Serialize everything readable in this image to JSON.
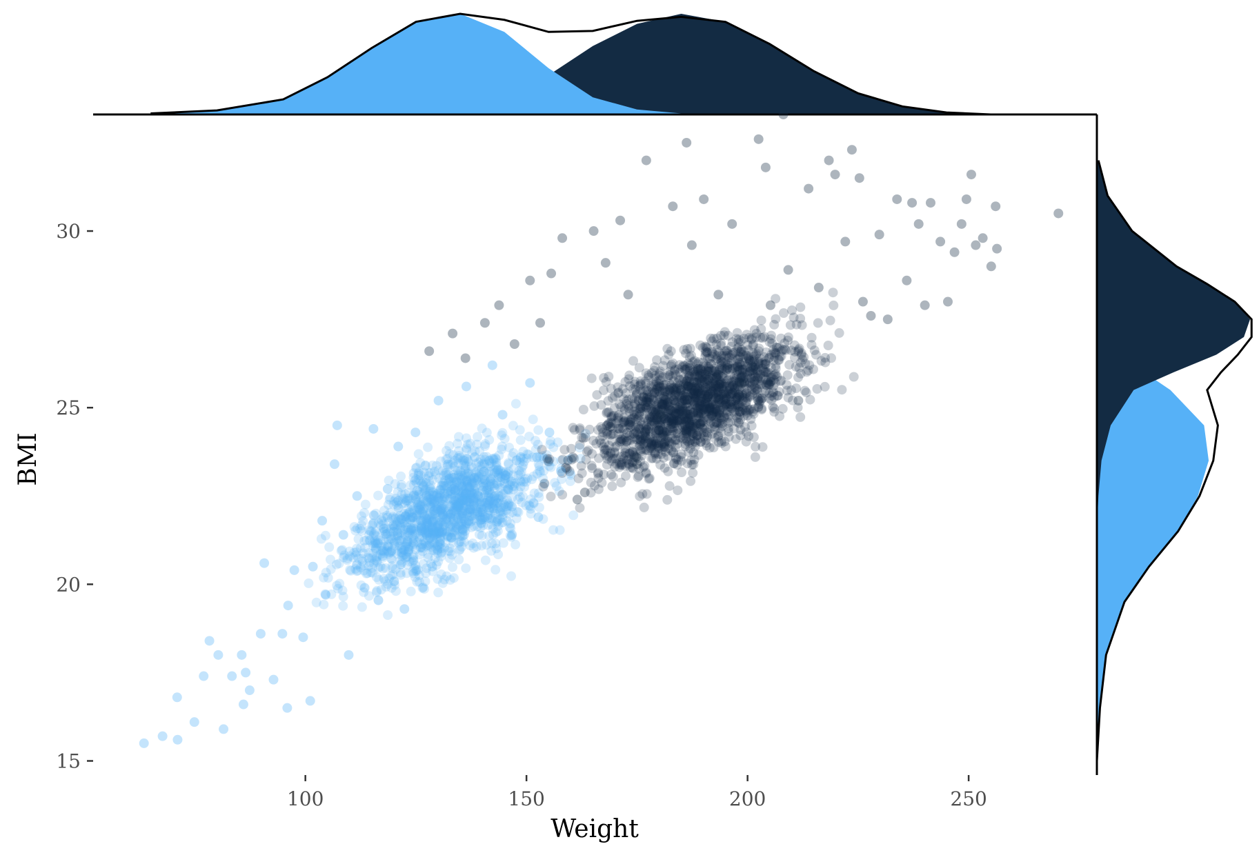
{
  "chart_data": {
    "type": "scatter",
    "xlabel": "Weight",
    "ylabel": "BMI",
    "xlim": [
      52,
      279
    ],
    "ylim": [
      14.6,
      33.3
    ],
    "x_ticks": [
      100,
      150,
      200,
      250
    ],
    "y_ticks": [
      15,
      20,
      25,
      30
    ],
    "grid": false,
    "legend": "none",
    "colors": {
      "light_group": "#56b1f7",
      "dark_group": "#132b43",
      "overall_density": "#000000"
    },
    "series": [
      {
        "color": "#56b1f7",
        "points": [
          [
            63.5,
            15.5
          ],
          [
            67.7,
            15.7
          ],
          [
            71.1,
            15.6
          ],
          [
            71.0,
            16.8
          ],
          [
            74.9,
            16.1
          ],
          [
            77.0,
            17.4
          ],
          [
            78.3,
            18.4
          ],
          [
            80.3,
            18.0
          ],
          [
            81.5,
            15.9
          ],
          [
            83.4,
            17.4
          ],
          [
            85.6,
            18.0
          ],
          [
            86.0,
            16.6
          ],
          [
            86.5,
            17.5
          ],
          [
            87.4,
            17.0
          ],
          [
            89.9,
            18.6
          ],
          [
            90.7,
            20.6
          ],
          [
            92.8,
            17.3
          ],
          [
            94.8,
            18.6
          ],
          [
            95.9,
            16.5
          ],
          [
            96.1,
            19.4
          ],
          [
            97.5,
            20.4
          ],
          [
            99.5,
            18.5
          ],
          [
            101.1,
            16.7
          ],
          [
            101.7,
            20.5
          ],
          [
            103.8,
            21.8
          ],
          [
            104.6,
            19.7
          ],
          [
            106.6,
            23.4
          ],
          [
            107.2,
            24.5
          ],
          [
            108.6,
            21.4
          ],
          [
            109.8,
            18.0
          ],
          [
            111.7,
            22.5
          ],
          [
            113.4,
            19.9
          ],
          [
            115.4,
            24.4
          ],
          [
            117.5,
            20.8
          ],
          [
            118.6,
            22.7
          ],
          [
            121.0,
            23.9
          ],
          [
            122.4,
            19.3
          ],
          [
            124.9,
            24.3
          ],
          [
            126.1,
            21.8
          ],
          [
            128.7,
            20.5
          ],
          [
            130.1,
            25.2
          ],
          [
            132.6,
            23.0
          ],
          [
            134.2,
            21.6
          ],
          [
            136.4,
            25.6
          ],
          [
            138.3,
            23.6
          ],
          [
            140.6,
            21.9
          ],
          [
            142.3,
            26.2
          ],
          [
            144.6,
            24.8
          ],
          [
            146.7,
            22.2
          ],
          [
            148.7,
            23.6
          ],
          [
            150.8,
            25.7
          ],
          [
            152.7,
            21.9
          ],
          [
            155.2,
            24.3
          ],
          [
            157.8,
            23.2
          ]
        ]
      },
      {
        "color": "#132b43",
        "points": [
          [
            128.0,
            26.6
          ],
          [
            133.3,
            27.1
          ],
          [
            136.2,
            26.4
          ],
          [
            140.6,
            27.4
          ],
          [
            143.8,
            27.9
          ],
          [
            147.3,
            26.8
          ],
          [
            150.8,
            28.6
          ],
          [
            153.1,
            27.4
          ],
          [
            155.6,
            28.8
          ],
          [
            158.1,
            29.8
          ],
          [
            161.5,
            22.4
          ],
          [
            163.2,
            22.6
          ],
          [
            165.2,
            30.0
          ],
          [
            167.9,
            29.1
          ],
          [
            171.2,
            30.3
          ],
          [
            173.0,
            28.2
          ],
          [
            174.8,
            23.6
          ],
          [
            175.0,
            23.4
          ],
          [
            177.1,
            32.0
          ],
          [
            180.3,
            24.8
          ],
          [
            183.1,
            30.7
          ],
          [
            186.2,
            32.5
          ],
          [
            187.4,
            29.6
          ],
          [
            190.1,
            30.9
          ],
          [
            193.4,
            28.2
          ],
          [
            196.5,
            30.2
          ],
          [
            198.7,
            25.7
          ],
          [
            202.5,
            32.6
          ],
          [
            204.1,
            31.8
          ],
          [
            205.2,
            27.9
          ],
          [
            208.1,
            33.3
          ],
          [
            209.2,
            28.9
          ],
          [
            211.5,
            25.2
          ],
          [
            213.8,
            31.2
          ],
          [
            216.1,
            28.4
          ],
          [
            218.4,
            32.0
          ],
          [
            219.8,
            31.6
          ],
          [
            222.1,
            29.7
          ],
          [
            223.6,
            32.3
          ],
          [
            225.3,
            31.5
          ],
          [
            226.1,
            28.0
          ],
          [
            227.9,
            27.6
          ],
          [
            229.8,
            29.9
          ],
          [
            231.7,
            27.5
          ],
          [
            233.8,
            30.9
          ],
          [
            236.0,
            28.6
          ],
          [
            237.2,
            30.8
          ],
          [
            238.7,
            30.2
          ],
          [
            240.1,
            27.9
          ],
          [
            241.4,
            30.8
          ],
          [
            243.6,
            29.7
          ],
          [
            245.3,
            28.0
          ],
          [
            246.8,
            29.4
          ],
          [
            248.4,
            30.2
          ],
          [
            249.5,
            30.9
          ],
          [
            250.6,
            31.6
          ],
          [
            251.6,
            29.6
          ],
          [
            253.2,
            29.8
          ],
          [
            255.1,
            29.0
          ],
          [
            256.1,
            30.7
          ],
          [
            256.4,
            29.5
          ],
          [
            270.3,
            30.5
          ]
        ]
      }
    ],
    "density_top": {
      "x": [
        65,
        80,
        95,
        105,
        115,
        125,
        135,
        145,
        155,
        165,
        175,
        185,
        195,
        205,
        215,
        225,
        235,
        245,
        255
      ],
      "light": [
        0.01,
        0.04,
        0.15,
        0.37,
        0.66,
        0.91,
        1.0,
        0.82,
        0.46,
        0.17,
        0.05,
        0.01,
        0.0,
        0.0,
        0.0,
        0.0,
        0.0,
        0.0,
        0.0
      ],
      "dark": [
        0.0,
        0.0,
        0.0,
        0.0,
        0.0,
        0.01,
        0.04,
        0.16,
        0.39,
        0.68,
        0.9,
        1.0,
        0.92,
        0.7,
        0.43,
        0.21,
        0.08,
        0.02,
        0.0
      ],
      "overall": [
        0.01,
        0.04,
        0.15,
        0.37,
        0.66,
        0.92,
        1.0,
        0.94,
        0.82,
        0.83,
        0.93,
        0.97,
        0.92,
        0.7,
        0.43,
        0.21,
        0.08,
        0.02,
        0.0
      ]
    },
    "density_right": {
      "y": [
        15.0,
        16.5,
        18.0,
        19.5,
        20.5,
        21.5,
        22.5,
        23.5,
        24.5,
        25.5,
        26.0,
        26.5,
        27.0,
        27.5,
        28.0,
        28.5,
        29.0,
        30.0,
        31.0,
        32.0
      ],
      "light": [
        0.0,
        0.02,
        0.06,
        0.18,
        0.34,
        0.53,
        0.66,
        0.73,
        0.7,
        0.48,
        0.31,
        0.14,
        0.05,
        0.01,
        0.0,
        0.0,
        0.0,
        0.0,
        0.0,
        0.0
      ],
      "dark": [
        0.0,
        0.0,
        0.0,
        0.0,
        0.0,
        0.0,
        0.01,
        0.03,
        0.09,
        0.24,
        0.5,
        0.78,
        0.96,
        1.0,
        0.9,
        0.72,
        0.52,
        0.23,
        0.07,
        0.01
      ],
      "overall": [
        0.0,
        0.02,
        0.06,
        0.18,
        0.34,
        0.53,
        0.67,
        0.76,
        0.79,
        0.72,
        0.81,
        0.92,
        1.01,
        1.01,
        0.9,
        0.72,
        0.52,
        0.23,
        0.07,
        0.01
      ]
    }
  }
}
